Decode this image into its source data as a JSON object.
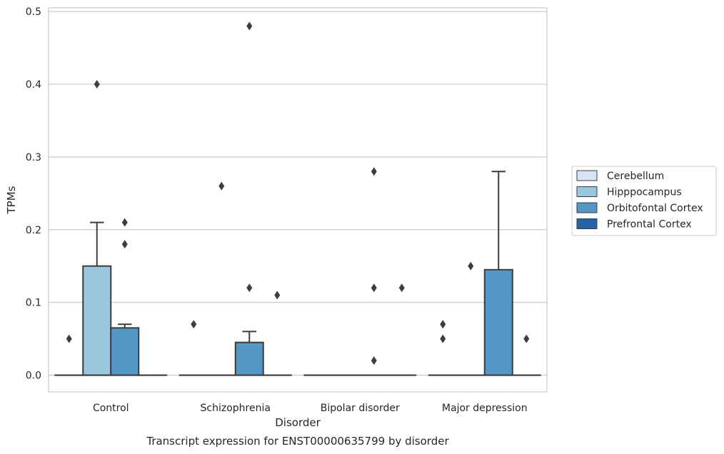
{
  "chart_data": {
    "type": "box",
    "title": "",
    "caption": "Transcript expression for ENST00000635799 by disorder",
    "xlabel": "Disorder",
    "ylabel": "TPMs",
    "ylim": [
      -0.023,
      0.505
    ],
    "yticks": [
      "0.0",
      "0.1",
      "0.2",
      "0.3",
      "0.4",
      "0.5"
    ],
    "grid": "horizontal",
    "legend_position": "right",
    "categories": [
      "Control",
      "Schizophrenia",
      "Bipolar disorder",
      "Major depression"
    ],
    "colors": {
      "Cerebellum": "#d6e5f4",
      "Hipppocampus": "#9ac7de",
      "Orbitofontal Cortex": "#5297c6",
      "Prefrontal Cortex": "#2462a8"
    },
    "series": [
      {
        "name": "Cerebellum",
        "boxes": [
          {
            "q1": 0,
            "median": 0,
            "q3": 0,
            "whisker_low": 0,
            "whisker_high": 0,
            "outliers": [
              0.05
            ]
          },
          {
            "q1": 0,
            "median": 0,
            "q3": 0,
            "whisker_low": 0,
            "whisker_high": 0,
            "outliers": [
              0.07
            ]
          },
          {
            "q1": 0,
            "median": 0,
            "q3": 0,
            "whisker_low": 0,
            "whisker_high": 0,
            "outliers": []
          },
          {
            "q1": 0,
            "median": 0,
            "q3": 0,
            "whisker_low": 0,
            "whisker_high": 0,
            "outliers": [
              0.05,
              0.07
            ]
          }
        ]
      },
      {
        "name": "Hipppocampus",
        "boxes": [
          {
            "q1": 0,
            "median": 0,
            "q3": 0.15,
            "whisker_low": 0,
            "whisker_high": 0.21,
            "outliers": [
              0.4
            ]
          },
          {
            "q1": 0,
            "median": 0,
            "q3": 0,
            "whisker_low": 0,
            "whisker_high": 0,
            "outliers": [
              0.26
            ]
          },
          {
            "q1": 0,
            "median": 0,
            "q3": 0,
            "whisker_low": 0,
            "whisker_high": 0,
            "outliers": []
          },
          {
            "q1": 0,
            "median": 0,
            "q3": 0,
            "whisker_low": 0,
            "whisker_high": 0,
            "outliers": [
              0.15
            ]
          }
        ]
      },
      {
        "name": "Orbitofontal Cortex",
        "boxes": [
          {
            "q1": 0,
            "median": 0,
            "q3": 0.065,
            "whisker_low": 0,
            "whisker_high": 0.07,
            "outliers": [
              0.21,
              0.18
            ]
          },
          {
            "q1": 0,
            "median": 0,
            "q3": 0.045,
            "whisker_low": 0,
            "whisker_high": 0.06,
            "outliers": [
              0.48,
              0.12
            ]
          },
          {
            "q1": 0,
            "median": 0,
            "q3": 0,
            "whisker_low": 0,
            "whisker_high": 0,
            "outliers": [
              0.28,
              0.12,
              0.02
            ]
          },
          {
            "q1": 0,
            "median": 0,
            "q3": 0.145,
            "whisker_low": 0,
            "whisker_high": 0.28,
            "outliers": []
          }
        ]
      },
      {
        "name": "Prefrontal Cortex",
        "boxes": [
          {
            "q1": 0,
            "median": 0,
            "q3": 0,
            "whisker_low": 0,
            "whisker_high": 0,
            "outliers": []
          },
          {
            "q1": 0,
            "median": 0,
            "q3": 0,
            "whisker_low": 0,
            "whisker_high": 0,
            "outliers": [
              0.11
            ]
          },
          {
            "q1": 0,
            "median": 0,
            "q3": 0,
            "whisker_low": 0,
            "whisker_high": 0,
            "outliers": [
              0.12
            ]
          },
          {
            "q1": 0,
            "median": 0,
            "q3": 0,
            "whisker_low": 0,
            "whisker_high": 0,
            "outliers": [
              0.05
            ]
          }
        ]
      }
    ]
  }
}
